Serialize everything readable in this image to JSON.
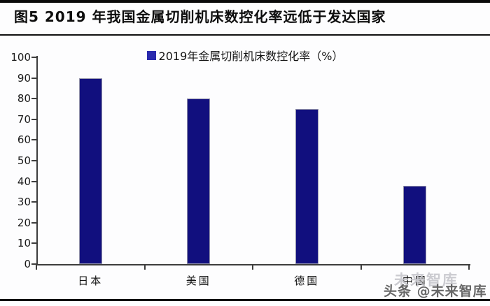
{
  "header": {
    "title": "图5  2019 年我国金属切削机床数控化率远低于发达国家"
  },
  "legend": {
    "label": "2019年金属切削机床数控化率（%）",
    "marker_color": "#2a2aad"
  },
  "chart_data": {
    "type": "bar",
    "categories": [
      "日本",
      "美国",
      "德国",
      "中国"
    ],
    "values": [
      90,
      80,
      75,
      38
    ],
    "title": "2019 年我国金属切削机床数控化率远低于发达国家",
    "legend_entries": [
      "2019年金属切削机床数控化率（%）"
    ],
    "xlabel": "",
    "ylabel": "",
    "ylim": [
      0,
      100
    ],
    "ytick_step": 10,
    "grid": false,
    "legend_position": "top-center",
    "bar_color": "#110f7e",
    "axis_color": "#3d3d3d"
  },
  "watermark": {
    "ghost_text": "未来智库",
    "credit_text": "头条 @未来智库"
  }
}
